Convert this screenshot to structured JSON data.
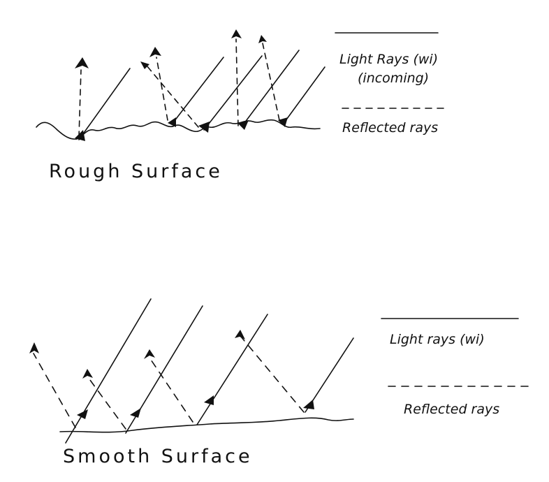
{
  "rough": {
    "legend_incoming_line1": "Light Rays (wi)",
    "legend_incoming_line2": "(incoming)",
    "legend_reflected": "Reflected rays",
    "caption": "Rough Surface"
  },
  "smooth": {
    "legend_incoming": "Light rays (wi)",
    "legend_reflected": "Reflected rays",
    "caption": "Smooth Surface"
  },
  "colors": {
    "ink": "#111111",
    "background": "#ffffff"
  }
}
